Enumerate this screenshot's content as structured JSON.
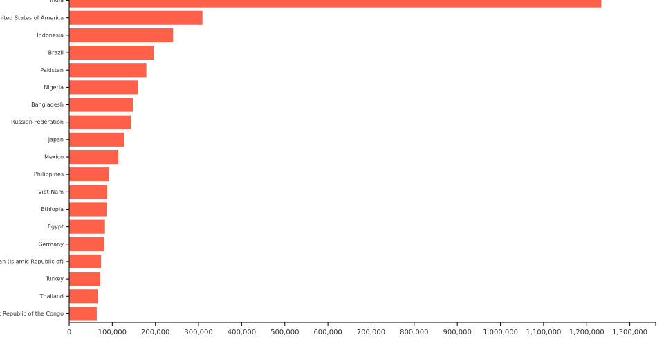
{
  "colors": {
    "bar": "#FF604A",
    "axis": "#000000",
    "ylabel": "#2E9B5B"
  },
  "chart_data": {
    "type": "bar",
    "orientation": "horizontal",
    "title": "",
    "xlabel": "",
    "ylabel": "",
    "xlim": [
      0,
      1360000
    ],
    "x_ticks": [
      "0",
      "100,000",
      "200,000",
      "300,000",
      "400,000",
      "500,000",
      "600,000",
      "700,000",
      "800,000",
      "900,000",
      "1,000,000",
      "1,100,000",
      "1,200,000",
      "1,300,000"
    ],
    "categories": [
      "India",
      "United States of America",
      "Indonesia",
      "Brazil",
      "Pakistan",
      "Nigeria",
      "Bangladesh",
      "Russian Federation",
      "Japan",
      "Mexico",
      "Philippines",
      "Viet Nam",
      "Ethiopia",
      "Egypt",
      "Germany",
      "Iran (Islamic Republic of)",
      "Turkey",
      "Thailand",
      "Democratic Republic of the Congo"
    ],
    "values": [
      1234000,
      309000,
      241000,
      196000,
      179000,
      159000,
      148000,
      143000,
      128000,
      114000,
      93000,
      88000,
      87000,
      83000,
      81000,
      74000,
      72000,
      66000,
      64000
    ],
    "grid": false
  }
}
